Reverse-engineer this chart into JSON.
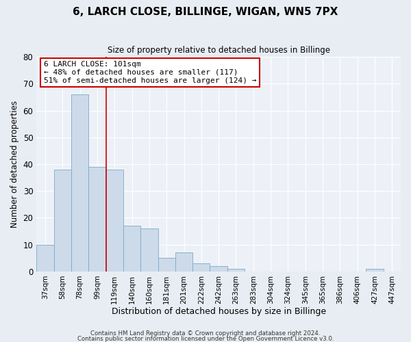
{
  "title": "6, LARCH CLOSE, BILLINGE, WIGAN, WN5 7PX",
  "subtitle": "Size of property relative to detached houses in Billinge",
  "bar_values": [
    10,
    38,
    66,
    39,
    38,
    17,
    16,
    5,
    7,
    3,
    2,
    1,
    0,
    0,
    0,
    0,
    0,
    0,
    0,
    1,
    0
  ],
  "x_labels": [
    "37sqm",
    "58sqm",
    "78sqm",
    "99sqm",
    "119sqm",
    "140sqm",
    "160sqm",
    "181sqm",
    "201sqm",
    "222sqm",
    "242sqm",
    "263sqm",
    "283sqm",
    "304sqm",
    "324sqm",
    "345sqm",
    "365sqm",
    "386sqm",
    "406sqm",
    "427sqm",
    "447sqm"
  ],
  "bar_color": "#cddaea",
  "bar_edge_color": "#7aaac8",
  "marker_bar_index": 3,
  "marker_color": "#cc0000",
  "ylabel": "Number of detached properties",
  "xlabel": "Distribution of detached houses by size in Billinge",
  "ylim": [
    0,
    80
  ],
  "yticks": [
    0,
    10,
    20,
    30,
    40,
    50,
    60,
    70,
    80
  ],
  "annotation_title": "6 LARCH CLOSE: 101sqm",
  "annotation_line1": "← 48% of detached houses are smaller (117)",
  "annotation_line2": "51% of semi-detached houses are larger (124) →",
  "annotation_box_color": "#ffffff",
  "annotation_box_edge": "#cc0000",
  "footer1": "Contains HM Land Registry data © Crown copyright and database right 2024.",
  "footer2": "Contains public sector information licensed under the Open Government Licence v3.0.",
  "bg_color": "#e8edf3",
  "plot_bg_color": "#edf1f7"
}
